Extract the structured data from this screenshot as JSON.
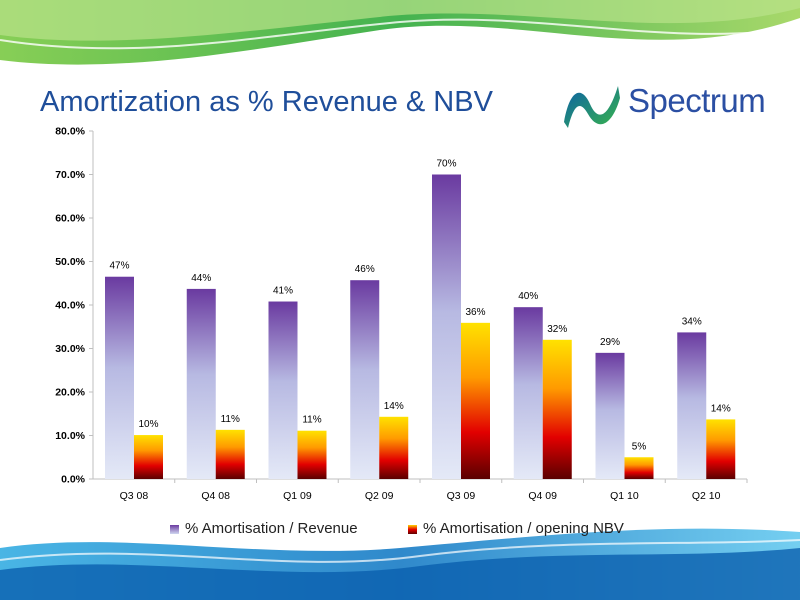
{
  "slide": {
    "title": "Amortization as % Revenue & NBV",
    "logo_text": "Spectrum"
  },
  "colors": {
    "title": "#1f4e9a",
    "series1_top": "#6a3aa0",
    "series1_bottom": "#d6dcf2",
    "series2_top": "#ffd400",
    "series2_mid": "#e60000",
    "series2_bottom": "#5a0000",
    "wave_green": "#39b54a",
    "wave_blue": "#1ea0d8"
  },
  "legend": {
    "series1": "% Amortisation / Revenue",
    "series2": "% Amortisation / opening NBV"
  },
  "chart_data": {
    "type": "bar",
    "categories": [
      "Q3 08",
      "Q4 08",
      "Q1 09",
      "Q2 09",
      "Q3 09",
      "Q4 09",
      "Q1 10",
      "Q2 10"
    ],
    "series": [
      {
        "name": "% Amortisation / Revenue",
        "values": [
          46.5,
          43.7,
          40.8,
          45.7,
          70.0,
          39.5,
          29.0,
          33.7
        ],
        "labels": [
          "47%",
          "44%",
          "41%",
          "46%",
          "70%",
          "40%",
          "29%",
          "34%"
        ]
      },
      {
        "name": "% Amortisation / opening NBV",
        "values": [
          10.1,
          11.3,
          11.1,
          14.3,
          35.9,
          32.0,
          5.0,
          13.7
        ],
        "labels": [
          "10%",
          "11%",
          "11%",
          "14%",
          "36%",
          "32%",
          "5%",
          "14%"
        ]
      }
    ],
    "yticks": [
      "0.0%",
      "10.0%",
      "20.0%",
      "30.0%",
      "40.0%",
      "50.0%",
      "60.0%",
      "70.0%",
      "80.0%"
    ],
    "ylim": [
      0,
      80
    ],
    "grid": false,
    "legend_position": "bottom"
  }
}
